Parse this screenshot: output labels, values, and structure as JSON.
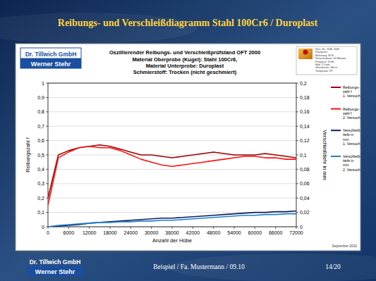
{
  "slide": {
    "title": "Reibungs- und Verschleißdiagramm Stahl 100Cr6 / Duroplast",
    "logo": [
      "Dr. Tillwich GmbH",
      "Werner Stehr"
    ],
    "info": [
      "Vers.-Nr.: 2048, 2049",
      "Parameter:",
      "Belastung: 30 N",
      "Versuchsdauer: 60 Minuten",
      "Frequenz: 10 Hz",
      "Hub: 2,5 mm",
      "Gleitstrecke: 180 m",
      "Temperatur: RT"
    ],
    "date": "September 2010",
    "footer": {
      "logo": [
        "Dr. Tillwich GmbH",
        "Werner Stehr"
      ],
      "center": "Beispiel / Fa. Mustermann / 09.10",
      "page": "14/20"
    }
  },
  "chart_data": {
    "type": "line",
    "title": "Oszillierender Reibungs- und Verschleißprüfstand OFT 2000",
    "subtitle": [
      "Material Oberprobe (Kugel): Stahl 100Cr6,",
      "Material Unterprobe: Duroplast",
      "Schmierstoff: Trocken (nicht geschmiert)"
    ],
    "x_label": "Anzahl der Hübe",
    "y_label": "Reibungszahl f",
    "y2_label": "Verschleißtiefe in mm",
    "x": [
      0,
      3000,
      6000,
      9000,
      12000,
      15000,
      18000,
      21000,
      24000,
      27000,
      30000,
      33000,
      36000,
      39000,
      42000,
      45000,
      48000,
      51000,
      54000,
      57000,
      60000,
      63000,
      66000,
      69000,
      72000
    ],
    "xlim": [
      0,
      72000
    ],
    "xticks": [
      0,
      6000,
      12000,
      18000,
      24000,
      30000,
      36000,
      42000,
      48000,
      54000,
      60000,
      66000,
      72000
    ],
    "ylim": [
      0,
      1
    ],
    "yticks": [
      0,
      {
        "value": 0.1,
        "label": "0,1"
      },
      {
        "value": 0.2,
        "label": "0,2"
      },
      {
        "value": 0.3,
        "label": "0,3"
      },
      {
        "value": 0.4,
        "label": "0,4"
      },
      {
        "value": 0.5,
        "label": "0,5"
      },
      {
        "value": 0.6,
        "label": "0,6"
      },
      {
        "value": 0.7,
        "label": "0,7"
      },
      {
        "value": 0.8,
        "label": "0,8"
      },
      {
        "value": 0.9,
        "label": "0,9"
      },
      1
    ],
    "y2lim": [
      0,
      0.2
    ],
    "y2ticks": [
      0,
      {
        "value": 0.02,
        "label": "0,02"
      },
      {
        "value": 0.04,
        "label": "0,04"
      },
      {
        "value": 0.06,
        "label": "0,06"
      },
      {
        "value": 0.08,
        "label": "0,08"
      },
      {
        "value": 0.1,
        "label": "0,1"
      },
      {
        "value": 0.12,
        "label": "0,12"
      },
      {
        "value": 0.14,
        "label": "0,14"
      },
      {
        "value": 0.16,
        "label": "0,16"
      },
      {
        "value": 0.18,
        "label": "0,18"
      },
      {
        "value": 0.2,
        "label": "0,2"
      }
    ],
    "grid": true,
    "legend": "right",
    "series": [
      {
        "name": "Reibungs-zahl f 1. Versuch",
        "color": "#a00000",
        "values": [
          0.2,
          0.5,
          0.53,
          0.55,
          0.56,
          0.57,
          0.56,
          0.54,
          0.52,
          0.5,
          0.5,
          0.49,
          0.48,
          0.49,
          0.5,
          0.51,
          0.52,
          0.51,
          0.5,
          0.5,
          0.5,
          0.51,
          0.5,
          0.49,
          0.48
        ]
      },
      {
        "name": "Reibungs-zahl f 2. Versuch",
        "color": "#ff1010",
        "values": [
          0.15,
          0.48,
          0.52,
          0.55,
          0.56,
          0.55,
          0.55,
          0.53,
          0.5,
          0.47,
          0.45,
          0.43,
          0.42,
          0.43,
          0.44,
          0.45,
          0.46,
          0.47,
          0.48,
          0.49,
          0.49,
          0.48,
          0.48,
          0.47,
          0.47
        ]
      },
      {
        "name": "Verschleiß-tiefe in mm 1. Versuch",
        "color": "#0c1f5a",
        "axis": "y2",
        "values": [
          0,
          0.001,
          0.002,
          0.003,
          0.005,
          0.006,
          0.007,
          0.008,
          0.009,
          0.01,
          0.011,
          0.012,
          0.012,
          0.013,
          0.014,
          0.015,
          0.016,
          0.017,
          0.018,
          0.019,
          0.02,
          0.02,
          0.021,
          0.021,
          0.022
        ]
      },
      {
        "name": "Verschleiß-tiefe in mm 2. Versuch",
        "color": "#1f7fd0",
        "axis": "y2",
        "values": [
          0,
          0.002,
          0.003,
          0.004,
          0.005,
          0.006,
          0.006,
          0.007,
          0.007,
          0.008,
          0.008,
          0.009,
          0.009,
          0.01,
          0.011,
          0.012,
          0.013,
          0.014,
          0.015,
          0.016,
          0.016,
          0.017,
          0.017,
          0.018,
          0.018
        ]
      }
    ]
  }
}
